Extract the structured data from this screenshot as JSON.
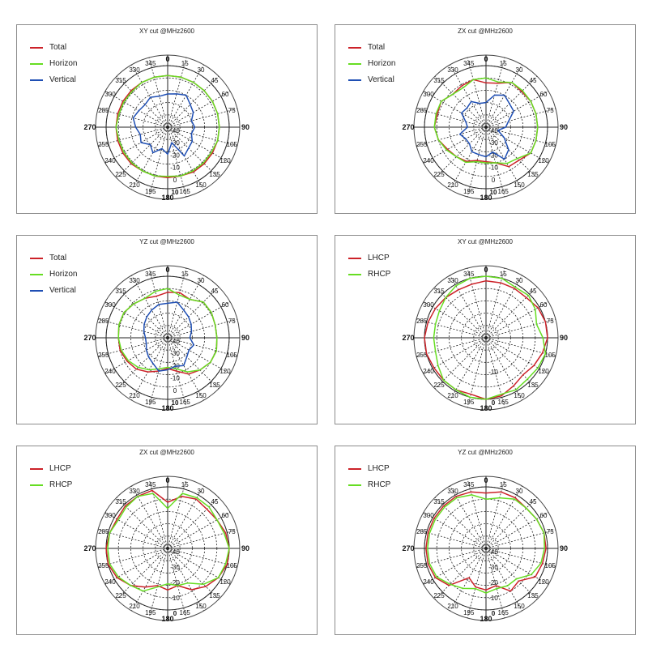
{
  "chart_data": [
    {
      "type": "polar",
      "title": "XY cut @MHz2600",
      "r_ticks": [
        -40,
        -30,
        -20,
        -10,
        0,
        10
      ],
      "r_tick_labels": [
        "-40",
        "-30",
        "-20",
        "-10",
        "0",
        "10"
      ],
      "rlim": [
        -40,
        10
      ],
      "angles": [
        0,
        15,
        30,
        45,
        60,
        75,
        90,
        105,
        120,
        135,
        150,
        165,
        180,
        195,
        210,
        225,
        240,
        255,
        270,
        285,
        300,
        315,
        330,
        345
      ],
      "angle_labels": [
        "0",
        "15",
        "30",
        "45",
        "60",
        "75",
        "90",
        "105",
        "120",
        "135",
        "150",
        "165",
        "180",
        "195",
        "210",
        "225",
        "240",
        "255",
        "270",
        "285",
        "300",
        "315",
        "330",
        "345"
      ],
      "grid": true,
      "legend": "top-left",
      "series": [
        {
          "name": "Total",
          "color": "#cc2229",
          "values": [
            2,
            2,
            2,
            2,
            2,
            2,
            2,
            2,
            2,
            2,
            2,
            1,
            1,
            1,
            1,
            2,
            2,
            2,
            2,
            2,
            2,
            2,
            2,
            2
          ]
        },
        {
          "name": "Horizon",
          "color": "#66dd22",
          "values": [
            2,
            2,
            2,
            2,
            2,
            2,
            2,
            2,
            1,
            1,
            1,
            1,
            0,
            1,
            1,
            1,
            1,
            1,
            2,
            1,
            1,
            1,
            2,
            2
          ]
        },
        {
          "name": "Vertical",
          "color": "#1f4fb4",
          "values": [
            -13,
            -12,
            -10,
            -14,
            -16,
            -20,
            -18,
            -20,
            -17,
            -16,
            -13,
            -27,
            -18,
            -22,
            -16,
            -20,
            -15,
            -17,
            -14,
            -11,
            -13,
            -14,
            -12,
            -14
          ]
        }
      ]
    },
    {
      "type": "polar",
      "title": "ZX cut @MHz2600",
      "r_ticks": [
        -40,
        -30,
        -20,
        -10,
        0,
        10
      ],
      "r_tick_labels": [
        "-40",
        "-30",
        "-20",
        "-10",
        "0",
        "10"
      ],
      "rlim": [
        -40,
        10
      ],
      "angles": [
        0,
        15,
        30,
        45,
        60,
        75,
        90,
        105,
        120,
        135,
        150,
        165,
        180,
        195,
        210,
        225,
        240,
        255,
        270,
        285,
        300,
        315,
        330,
        345
      ],
      "angle_labels": [
        "0",
        "15",
        "30",
        "45",
        "60",
        "75",
        "90",
        "105",
        "120",
        "135",
        "150",
        "165",
        "180",
        "195",
        "210",
        "225",
        "240",
        "255",
        "270",
        "285",
        "300",
        "315",
        "330",
        "345"
      ],
      "grid": true,
      "legend": "top-left",
      "series": [
        {
          "name": "Total",
          "color": "#cc2229",
          "values": [
            -4,
            -3,
            2,
            1,
            2,
            2,
            2,
            2,
            2,
            -2,
            -3,
            -10,
            -12,
            -12,
            -8,
            -6,
            -4,
            0,
            2,
            1,
            2,
            -2,
            -1,
            0
          ]
        },
        {
          "name": "Horizon",
          "color": "#66dd22",
          "values": [
            0,
            -2,
            2,
            2,
            2,
            2,
            2,
            2,
            2,
            -4,
            -6,
            -10,
            -11,
            -11,
            -7,
            -6,
            -3,
            0,
            2,
            2,
            2,
            -2,
            -3,
            0
          ]
        },
        {
          "name": "Vertical",
          "color": "#1f4fb4",
          "values": [
            -20,
            -13,
            -10,
            -13,
            -14,
            -21,
            -24,
            -30,
            -23,
            -14,
            -10,
            -19,
            -16,
            -17,
            -17,
            -21,
            -21,
            -18,
            -25,
            -23,
            -17,
            -18,
            -16,
            -20
          ]
        }
      ]
    },
    {
      "type": "polar",
      "title": "YZ cut @MHz2600",
      "r_ticks": [
        -40,
        -30,
        -20,
        -10,
        0,
        10
      ],
      "r_tick_labels": [
        "-40",
        "-30",
        "-20",
        "-10",
        "0",
        "10"
      ],
      "rlim": [
        -40,
        10
      ],
      "angles": [
        0,
        15,
        30,
        45,
        60,
        75,
        90,
        105,
        120,
        135,
        150,
        165,
        180,
        195,
        210,
        225,
        240,
        255,
        270,
        285,
        300,
        315,
        330,
        345
      ],
      "angle_labels": [
        "0",
        "15",
        "30",
        "45",
        "60",
        "75",
        "90",
        "105",
        "120",
        "135",
        "150",
        "165",
        "180",
        "195",
        "210",
        "225",
        "240",
        "255",
        "270",
        "285",
        "300",
        "315",
        "330",
        "345"
      ],
      "grid": true,
      "legend": "top-left",
      "series": [
        {
          "name": "Total",
          "color": "#cc2229",
          "values": [
            -3,
            -2,
            -4,
            1,
            1,
            0,
            0,
            1,
            0,
            -3,
            -6,
            -12,
            -15,
            -12,
            -8,
            -4,
            -2,
            0,
            0,
            1,
            1,
            -1,
            -3,
            -5
          ]
        },
        {
          "name": "Horizon",
          "color": "#66dd22",
          "values": [
            0,
            -4,
            -4,
            1,
            1,
            0,
            0,
            1,
            0,
            -3,
            -8,
            -14,
            -16,
            -14,
            -10,
            -6,
            -3,
            -1,
            0,
            1,
            1,
            -1,
            -3,
            -1
          ]
        },
        {
          "name": "Vertical",
          "color": "#1f4fb4",
          "values": [
            -12,
            -10,
            -14,
            -16,
            -18,
            -20,
            -22,
            -18,
            -20,
            -18,
            -14,
            -16,
            -14,
            -12,
            -16,
            -18,
            -20,
            -22,
            -22,
            -20,
            -18,
            -16,
            -14,
            -12
          ]
        }
      ]
    },
    {
      "type": "polar",
      "title": "XY cut @MHz2600",
      "r_ticks": [
        -20,
        -10,
        0
      ],
      "r_tick_labels": [
        "",
        "-10",
        "0"
      ],
      "rlim": [
        -20,
        0
      ],
      "angles": [
        0,
        15,
        30,
        45,
        60,
        75,
        90,
        105,
        120,
        135,
        150,
        165,
        180,
        195,
        210,
        225,
        240,
        255,
        270,
        285,
        300,
        315,
        330,
        345
      ],
      "angle_labels": [
        "0",
        "15",
        "30",
        "45",
        "60",
        "75",
        "90",
        "105",
        "120",
        "135",
        "150",
        "165",
        "180",
        "195",
        "210",
        "225",
        "240",
        "255",
        "270",
        "285",
        "300",
        "315",
        "330",
        "345"
      ],
      "grid": true,
      "legend": "top-left",
      "series": [
        {
          "name": "LHCP",
          "color": "#cc2229",
          "values": [
            -1.5,
            -1.5,
            -1.5,
            -1.5,
            -0.5,
            0,
            0,
            -1,
            -2,
            -3,
            -2,
            -0.5,
            0,
            -1,
            -0.5,
            -0.5,
            -0.5,
            0,
            0,
            -0.5,
            -1,
            -1.5,
            -2,
            -2
          ]
        },
        {
          "name": "RHCP",
          "color": "#66dd22",
          "values": [
            0,
            0,
            -1,
            -0.5,
            -1.5,
            -3,
            -1.5,
            0,
            -0.5,
            -1,
            -0.5,
            -1,
            0,
            0,
            -0.5,
            -0.5,
            -2,
            -3,
            -3,
            -3,
            -2.5,
            -1.5,
            -0.5,
            0
          ]
        }
      ]
    },
    {
      "type": "polar",
      "title": "ZX cut @MHz2600",
      "r_ticks": [
        -40,
        -30,
        -20,
        -10,
        0
      ],
      "r_tick_labels": [
        "-40",
        "-30",
        "-20",
        "-10",
        "0"
      ],
      "rlim": [
        -40,
        0
      ],
      "angles": [
        0,
        15,
        30,
        45,
        60,
        75,
        90,
        105,
        120,
        135,
        150,
        165,
        180,
        195,
        210,
        225,
        240,
        255,
        270,
        285,
        300,
        315,
        330,
        345
      ],
      "angle_labels": [
        "0",
        "15",
        "30",
        "45",
        "60",
        "75",
        "90",
        "105",
        "120",
        "135",
        "150",
        "165",
        "180",
        "195",
        "210",
        "225",
        "240",
        "255",
        "270",
        "285",
        "300",
        "315",
        "330",
        "345"
      ],
      "grid": true,
      "legend": "top-left",
      "series": [
        {
          "name": "LHCP",
          "color": "#cc2229",
          "values": [
            -10,
            -5,
            -3,
            -4,
            -3,
            -1,
            0,
            0,
            -2,
            -5,
            -9,
            -15,
            -13,
            -15,
            -11,
            -6,
            -2,
            0,
            0,
            -1,
            -2,
            -1,
            -1,
            -1
          ]
        },
        {
          "name": "RHCP",
          "color": "#66dd22",
          "values": [
            -14,
            -3,
            -2,
            -2,
            -3,
            -2,
            0,
            -1,
            -2,
            -7,
            -14,
            -15,
            -17,
            -14,
            -8,
            -6,
            -3,
            -1,
            -1,
            -1,
            -3,
            -2,
            -1,
            -3
          ]
        }
      ]
    },
    {
      "type": "polar",
      "title": "YZ cut @MHz2600",
      "r_ticks": [
        -40,
        -30,
        -20,
        -10,
        0
      ],
      "r_tick_labels": [
        "-40",
        "-30",
        "-20",
        "-10",
        "0"
      ],
      "rlim": [
        -40,
        0
      ],
      "angles": [
        0,
        15,
        30,
        45,
        60,
        75,
        90,
        105,
        120,
        135,
        150,
        165,
        180,
        195,
        210,
        225,
        240,
        255,
        270,
        285,
        300,
        315,
        330,
        345
      ],
      "angle_labels": [
        "0",
        "15",
        "30",
        "45",
        "60",
        "75",
        "90",
        "105",
        "120",
        "135",
        "150",
        "165",
        "180",
        "195",
        "210",
        "225",
        "240",
        "255",
        "270",
        "285",
        "300",
        "315",
        "330",
        "345"
      ],
      "grid": true,
      "legend": "top-left",
      "series": [
        {
          "name": "LHCP",
          "color": "#cc2229",
          "values": [
            -4,
            -2,
            -2,
            -3,
            -2,
            -1,
            -1,
            -2,
            -3,
            -10,
            -8,
            -15,
            -13,
            -14,
            -18,
            -6,
            -2,
            -1,
            -1,
            -1,
            -1,
            -1,
            -1,
            -2
          ]
        },
        {
          "name": "RHCP",
          "color": "#66dd22",
          "values": [
            -8,
            -6,
            -3,
            -3,
            -2,
            -1,
            -2,
            -3,
            -6,
            -12,
            -12,
            -13,
            -11,
            -13,
            -10,
            -7,
            -3,
            -2,
            -2,
            -2,
            -2,
            -2,
            -2,
            -4
          ]
        }
      ]
    }
  ]
}
